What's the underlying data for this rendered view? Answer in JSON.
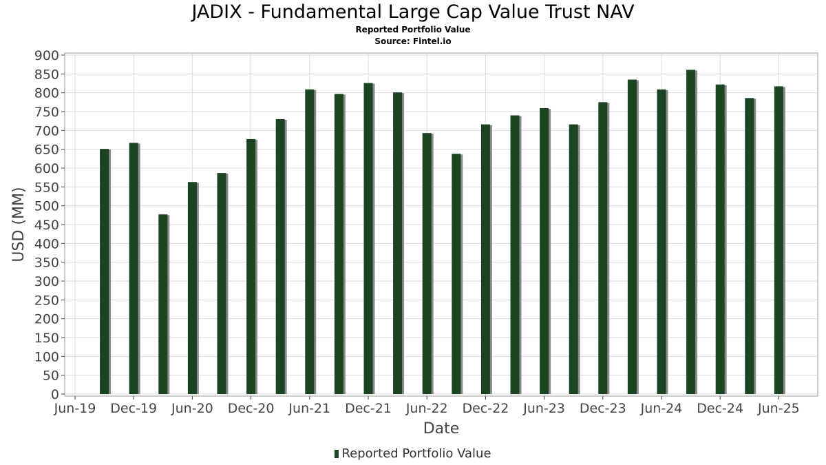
{
  "header": {
    "title": "JADIX - Fundamental Large Cap Value Trust NAV",
    "subtitle": "Reported Portfolio Value",
    "source": "Source: Fintel.io"
  },
  "colors": {
    "bar": "#1b4423",
    "shadow": "#8a8a8a",
    "grid": "#dcdcdc",
    "axis": "#444444"
  },
  "chart_data": {
    "type": "bar",
    "title": "JADIX - Fundamental Large Cap Value Trust NAV",
    "xlabel": "Date",
    "ylabel": "USD (MM)",
    "ylim": [
      0,
      900
    ],
    "yticks": [
      0,
      50,
      100,
      150,
      200,
      250,
      300,
      350,
      400,
      450,
      500,
      550,
      600,
      650,
      700,
      750,
      800,
      850,
      900
    ],
    "xticks": [
      "Jun-19",
      "Dec-19",
      "Jun-20",
      "Dec-20",
      "Jun-21",
      "Dec-21",
      "Jun-22",
      "Dec-22",
      "Jun-23",
      "Dec-23",
      "Jun-24",
      "Dec-24",
      "Jun-25"
    ],
    "grid": true,
    "legend": "bottom-center",
    "series": [
      {
        "name": "Reported Portfolio Value",
        "categories": [
          "Sep-19",
          "Dec-19",
          "Mar-20",
          "Jun-20",
          "Sep-20",
          "Dec-20",
          "Mar-21",
          "Jun-21",
          "Sep-21",
          "Dec-21",
          "Mar-22",
          "Jun-22",
          "Sep-22",
          "Dec-22",
          "Mar-23",
          "Jun-23",
          "Sep-23",
          "Dec-23",
          "Mar-24",
          "Jun-24",
          "Sep-24",
          "Dec-24",
          "Mar-25",
          "Jun-25"
        ],
        "values": [
          651,
          667,
          477,
          563,
          587,
          677,
          730,
          809,
          797,
          826,
          801,
          693,
          638,
          716,
          740,
          759,
          716,
          775,
          835,
          809,
          861,
          822,
          786,
          817
        ]
      }
    ]
  }
}
